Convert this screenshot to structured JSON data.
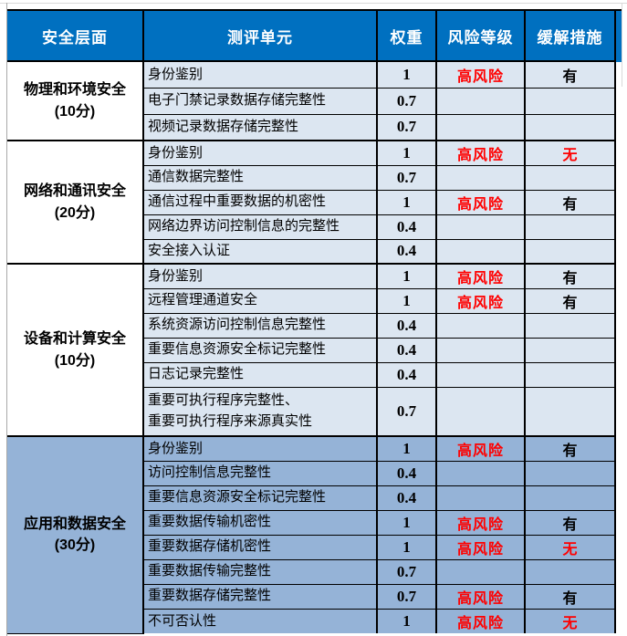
{
  "colors": {
    "header_bg": "#0070C0",
    "header_text": "#FFFFFF",
    "row_bg_light": "#DCE6F1",
    "label_bg": "#FFFFFF",
    "highlight_group_bg": "#95B3D7",
    "risk_red": "#FF0000",
    "border": "#000000"
  },
  "chart_data": {
    "type": "table",
    "title": "",
    "columns": [
      "安全层面",
      "测评单元",
      "权重",
      "风险等级",
      "缓解措施"
    ],
    "groups": [
      {
        "layer": "物理和环境安全",
        "score": "(10分)",
        "highlight": false,
        "rows": [
          {
            "unit": "身份鉴别",
            "weight": "1",
            "risk": "高风险",
            "mitigation": "有"
          },
          {
            "unit": "电子门禁记录数据存储完整性",
            "weight": "0.7",
            "risk": "",
            "mitigation": ""
          },
          {
            "unit": "视频记录数据存储完整性",
            "weight": "0.7",
            "risk": "",
            "mitigation": ""
          }
        ]
      },
      {
        "layer": "网络和通讯安全",
        "score": "(20分)",
        "highlight": false,
        "rows": [
          {
            "unit": "身份鉴别",
            "weight": "1",
            "risk": "高风险",
            "mitigation": "无"
          },
          {
            "unit": "通信数据完整性",
            "weight": "0.7",
            "risk": "",
            "mitigation": ""
          },
          {
            "unit": "通信过程中重要数据的机密性",
            "weight": "1",
            "risk": "高风险",
            "mitigation": "有"
          },
          {
            "unit": "网络边界访问控制信息的完整性",
            "weight": "0.4",
            "risk": "",
            "mitigation": ""
          },
          {
            "unit": "安全接入认证",
            "weight": "0.4",
            "risk": "",
            "mitigation": ""
          }
        ]
      },
      {
        "layer": "设备和计算安全",
        "score": "(10分)",
        "highlight": false,
        "rows": [
          {
            "unit": "身份鉴别",
            "weight": "1",
            "risk": "高风险",
            "mitigation": "有"
          },
          {
            "unit": "远程管理通道安全",
            "weight": "1",
            "risk": "高风险",
            "mitigation": "有"
          },
          {
            "unit": "系统资源访问控制信息完整性",
            "weight": "0.4",
            "risk": "",
            "mitigation": ""
          },
          {
            "unit": "重要信息资源安全标记完整性",
            "weight": "0.4",
            "risk": "",
            "mitigation": ""
          },
          {
            "unit": "日志记录完整性",
            "weight": "0.4",
            "risk": "",
            "mitigation": ""
          },
          {
            "unit": "重要可执行程序完整性、",
            "unit_line2": "重要可执行程序来源真实性",
            "tall": true,
            "weight": "0.7",
            "risk": "",
            "mitigation": ""
          }
        ]
      },
      {
        "layer": "应用和数据安全",
        "score": "(30分)",
        "highlight": true,
        "rows": [
          {
            "unit": "身份鉴别",
            "weight": "1",
            "risk": "高风险",
            "mitigation": "有"
          },
          {
            "unit": "访问控制信息完整性",
            "weight": "0.4",
            "risk": "",
            "mitigation": ""
          },
          {
            "unit": "重要信息资源安全标记完整性",
            "weight": "0.4",
            "risk": "",
            "mitigation": ""
          },
          {
            "unit": "重要数据传输机密性",
            "weight": "1",
            "risk": "高风险",
            "mitigation": "有"
          },
          {
            "unit": "重要数据存储机密性",
            "weight": "1",
            "risk": "高风险",
            "mitigation": "无"
          },
          {
            "unit": "重要数据传输完整性",
            "weight": "0.7",
            "risk": "",
            "mitigation": ""
          },
          {
            "unit": "重要数据存储完整性",
            "weight": "0.7",
            "risk": "高风险",
            "mitigation": "有"
          },
          {
            "unit": "不可否认性",
            "weight": "1",
            "risk": "高风险",
            "mitigation": "无"
          }
        ]
      }
    ]
  }
}
